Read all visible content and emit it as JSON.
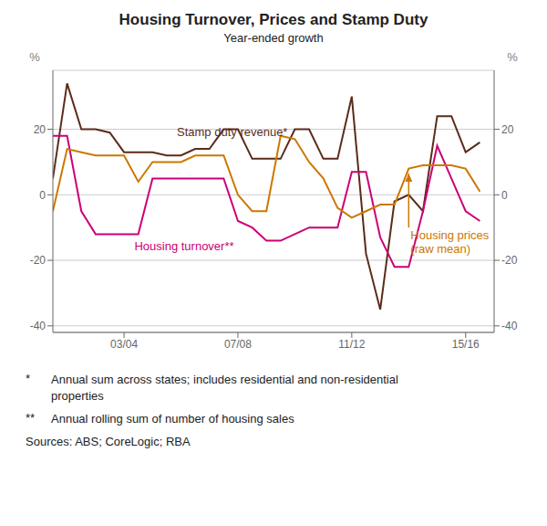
{
  "chart_data": {
    "type": "line",
    "title": "Housing Turnover, Prices and Stamp Duty",
    "subtitle": "Year-ended growth",
    "x": [
      2001.0,
      2001.5,
      2002.0,
      2002.5,
      2003.0,
      2003.5,
      2004.0,
      2004.5,
      2005.0,
      2005.5,
      2006.0,
      2006.5,
      2007.0,
      2007.5,
      2008.0,
      2008.5,
      2009.0,
      2009.5,
      2010.0,
      2010.5,
      2011.0,
      2011.5,
      2012.0,
      2012.5,
      2013.0,
      2013.5,
      2014.0,
      2014.5,
      2015.0,
      2015.5,
      2016.0
    ],
    "series": [
      {
        "color": "#5B2C1A",
        "values": [
          5,
          34,
          20,
          20,
          19,
          13,
          13,
          13,
          12,
          12,
          14,
          14,
          20,
          20,
          11,
          11,
          11,
          20,
          20,
          11,
          11,
          30,
          -18,
          -35,
          -2,
          0,
          -5,
          24,
          24,
          13,
          16
        ]
      },
      {
        "color": "#CC0077",
        "values": [
          18,
          18,
          -5,
          -12,
          -12,
          -12,
          -12,
          5,
          5,
          5,
          5,
          5,
          5,
          -8,
          -10,
          -14,
          -14,
          -12,
          -10,
          -10,
          -10,
          7,
          7,
          -13,
          -22,
          -22,
          -5,
          15,
          5,
          -5,
          -8
        ]
      },
      {
        "color": "#CC7700",
        "values": [
          -5,
          14,
          13,
          12,
          12,
          12,
          4,
          10,
          10,
          10,
          12,
          12,
          12,
          0,
          -5,
          -5,
          18,
          17,
          10,
          5,
          -4,
          -7,
          -5,
          -3,
          -3,
          8,
          9,
          9,
          9,
          8,
          1
        ]
      }
    ],
    "xlim": [
      2001.0,
      2016.5
    ],
    "xticks": [
      {
        "value": 2003.5,
        "label": "03/04"
      },
      {
        "value": 2007.5,
        "label": "07/08"
      },
      {
        "value": 2011.5,
        "label": "11/12"
      },
      {
        "value": 2015.5,
        "label": "15/16"
      }
    ],
    "ylim": [
      -42,
      38
    ],
    "yticks": [
      -40,
      -20,
      0,
      20
    ],
    "y2lim": [
      -42,
      38
    ],
    "y2ticks": [
      -40,
      -20,
      0,
      20
    ],
    "ylabel": "%",
    "y2label": "%",
    "grid": true,
    "annotations": [
      {
        "text": "Stamp duty revenue*",
        "x": 2007.3,
        "y": 18,
        "color": "#5B2C1A"
      },
      {
        "text": "Housing turnover**",
        "x": 2003.8,
        "y": -16,
        "color": "#CC0077"
      },
      {
        "text": "Housing prices\n(raw mean)",
        "x": 2013.5,
        "y": -10,
        "color": "#CC7700",
        "arrow_x": 2013.5,
        "arrow_y": 6.5
      }
    ],
    "footnotes": [
      {
        "mark": "*",
        "text": "Annual sum across states; includes residential and non-residential\nproperties"
      },
      {
        "mark": "**",
        "text": "Annual rolling sum of number of housing sales"
      }
    ],
    "sources": "Sources: ABS; CoreLogic; RBA"
  }
}
